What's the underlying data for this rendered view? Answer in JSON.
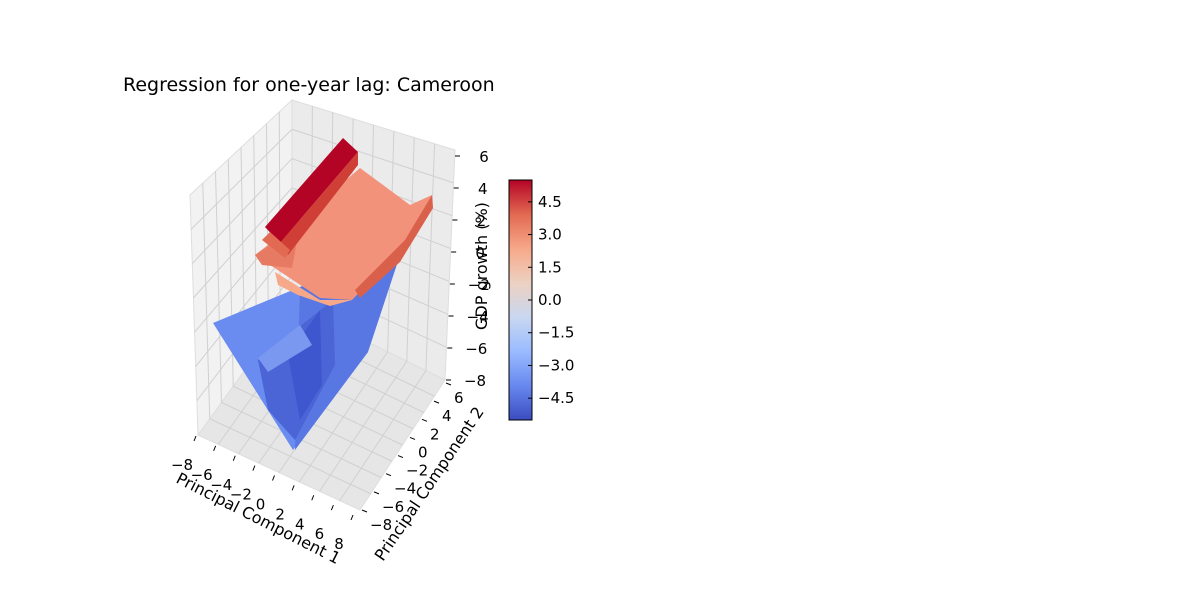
{
  "chart_data": {
    "type": "surface3d",
    "title": "Regression for one-year lag: Cameroon",
    "xlabel": "Principal Component 1",
    "ylabel": "Principal Component 2",
    "zlabel": "GDP growth (%)",
    "xlim": [
      -8,
      8
    ],
    "ylim": [
      -8,
      8
    ],
    "zlim": [
      -8,
      6
    ],
    "x_ticks": [
      "−8",
      "−6",
      "−4",
      "−2",
      "0",
      "2",
      "4",
      "6",
      "8"
    ],
    "y_ticks": [
      "−8",
      "−6",
      "−4",
      "−2",
      "0",
      "2",
      "4",
      "6"
    ],
    "z_ticks": [
      "−8",
      "−6",
      "−4",
      "−2",
      "0",
      "2",
      "4",
      "6"
    ],
    "colormap": "coolwarm",
    "colorbar": {
      "range": [
        -5.5,
        5.5
      ],
      "ticks": [
        "−4.5",
        "−3.0",
        "−1.5",
        "0.0",
        "1.5",
        "3.0",
        "4.5"
      ],
      "tick_values": [
        -4.5,
        -3.0,
        -1.5,
        0.0,
        1.5,
        3.0,
        4.5
      ],
      "colors": [
        "#3b4cc0",
        "#6788ee",
        "#9abbff",
        "#c9d7f0",
        "#edd1c2",
        "#f7a889",
        "#e26952",
        "#b40426"
      ]
    },
    "grid": true,
    "surface_levels": {
      "low_plateau": -4.8,
      "high_plateau": 2.2,
      "ridge": 5.0
    }
  }
}
